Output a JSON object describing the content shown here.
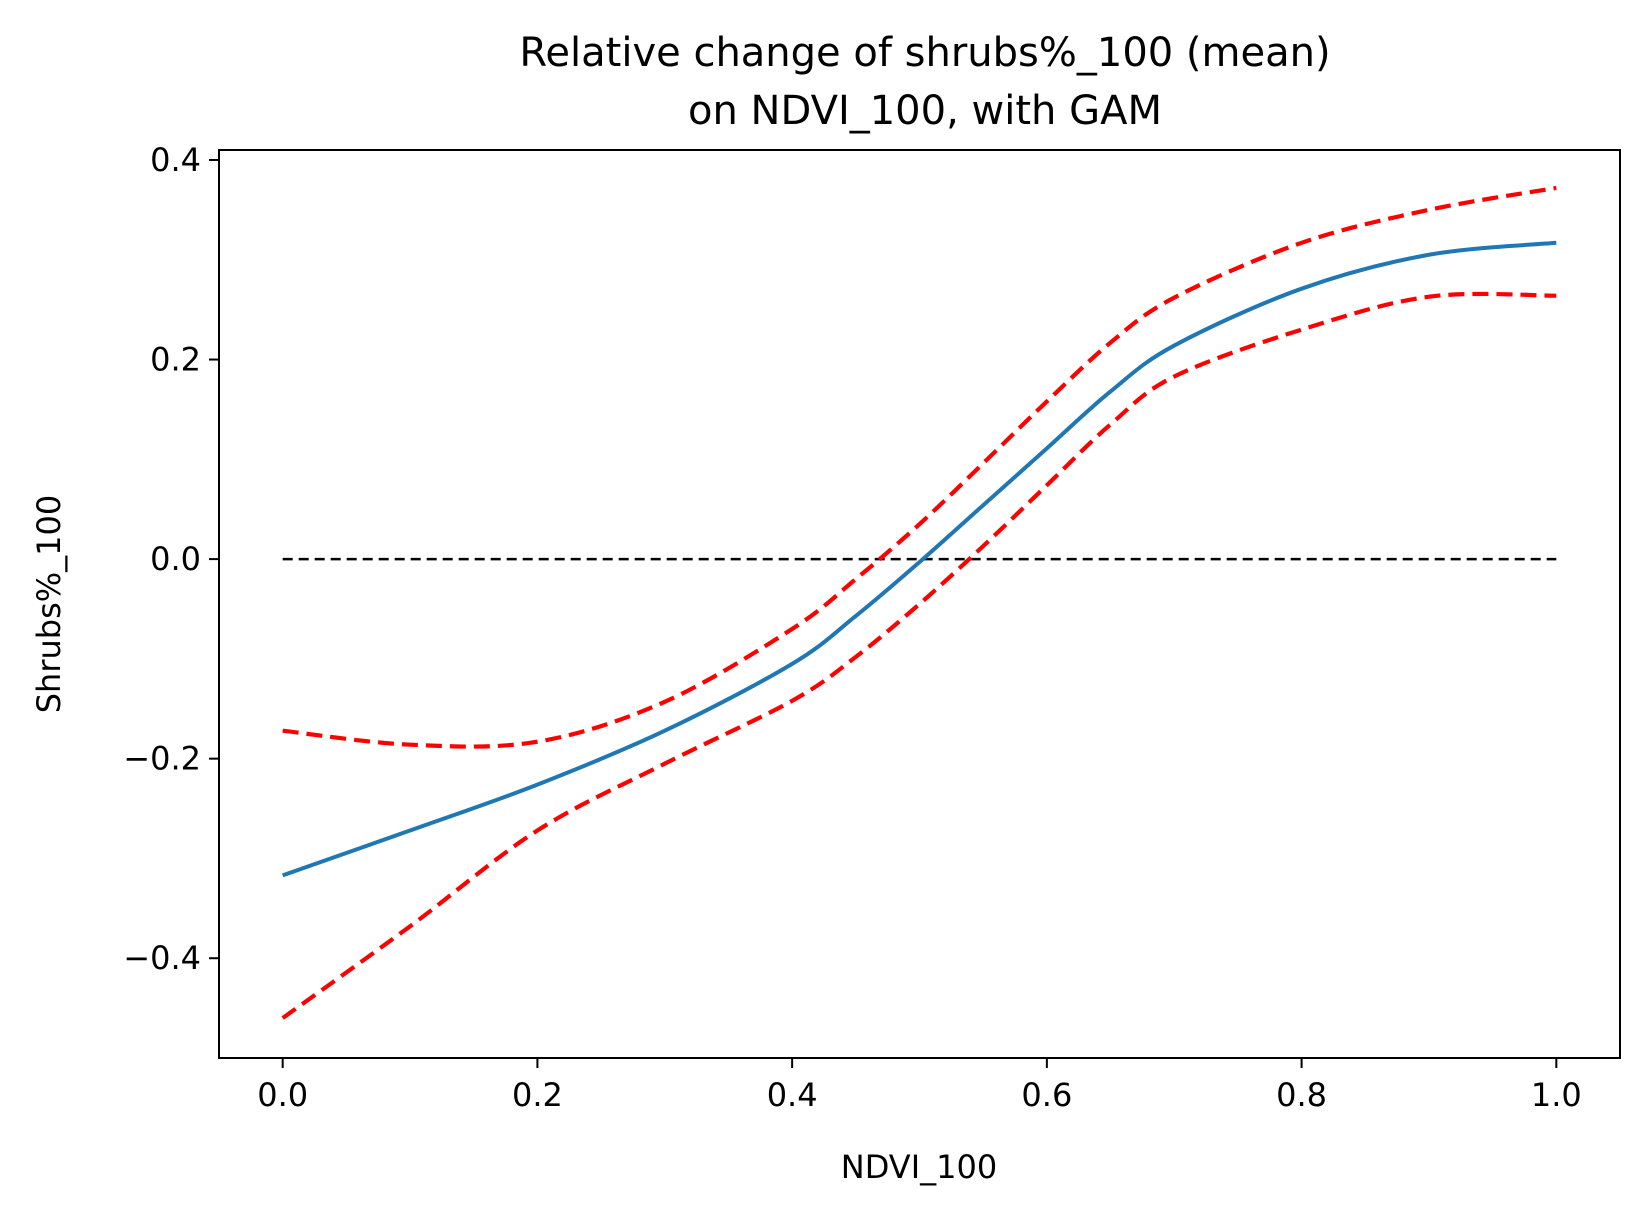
{
  "chart_data": {
    "type": "line",
    "title_lines": [
      "Relative change of shrubs%_100 (mean)",
      "on NDVI_100, with GAM"
    ],
    "xlabel": "NDVI_100",
    "ylabel": "Shrubs%_100",
    "xlim": [
      -0.05,
      1.05
    ],
    "ylim": [
      -0.5,
      0.41
    ],
    "xticks": [
      0.0,
      0.2,
      0.4,
      0.6,
      0.8,
      1.0
    ],
    "xtick_labels": [
      "0.0",
      "0.2",
      "0.4",
      "0.6",
      "0.8",
      "1.0"
    ],
    "yticks": [
      -0.4,
      -0.2,
      0.0,
      0.2,
      0.4
    ],
    "ytick_labels": [
      "−0.4",
      "−0.2",
      "0.0",
      "0.2",
      "0.4"
    ],
    "grid": false,
    "x": [
      0.0,
      0.1,
      0.2,
      0.3,
      0.4,
      0.45,
      0.5,
      0.55,
      0.6,
      0.65,
      0.7,
      0.8,
      0.9,
      1.0
    ],
    "series": [
      {
        "role": "mean",
        "color": "#1f77b4",
        "style": "solid",
        "values": [
          -0.317,
          -0.272,
          -0.226,
          -0.172,
          -0.105,
          -0.057,
          -0.003,
          0.054,
          0.111,
          0.168,
          0.214,
          0.271,
          0.305,
          0.317
        ]
      },
      {
        "role": "upper-ci",
        "color": "#ff0000",
        "style": "dashed",
        "values": [
          -0.172,
          -0.186,
          -0.183,
          -0.143,
          -0.07,
          -0.02,
          0.035,
          0.096,
          0.158,
          0.217,
          0.262,
          0.317,
          0.35,
          0.372
        ]
      },
      {
        "role": "lower-ci",
        "color": "#ff0000",
        "style": "dashed",
        "values": [
          -0.46,
          -0.368,
          -0.272,
          -0.205,
          -0.142,
          -0.098,
          -0.045,
          0.013,
          0.074,
          0.135,
          0.183,
          0.23,
          0.263,
          0.264
        ]
      },
      {
        "role": "zero-reference",
        "color": "#000000",
        "style": "dashed",
        "values": [
          0,
          0,
          0,
          0,
          0,
          0,
          0,
          0,
          0,
          0,
          0,
          0,
          0,
          0
        ]
      }
    ]
  }
}
